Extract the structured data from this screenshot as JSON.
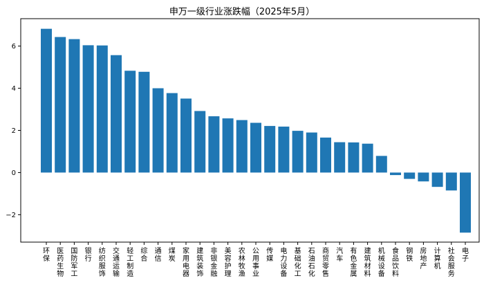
{
  "chart_data": {
    "type": "bar",
    "title": "申万一级行业涨跌幅（2025年5月）",
    "xlabel": "",
    "ylabel": "",
    "ylim": [
      -3.3,
      7.3
    ],
    "yticks": [
      -2,
      0,
      2,
      4,
      6
    ],
    "grid": false,
    "bar_color": "#1f77b4",
    "categories": [
      "环保",
      "医药生物",
      "国防军工",
      "银行",
      "纺织服饰",
      "交通运输",
      "轻工制造",
      "综合",
      "通信",
      "煤炭",
      "家用电器",
      "建筑装饰",
      "非银金融",
      "美容护理",
      "农林牧渔",
      "公用事业",
      "传媒",
      "电力设备",
      "基础化工",
      "石油石化",
      "商贸零售",
      "汽车",
      "有色金属",
      "建筑材料",
      "机械设备",
      "食品饮料",
      "钢铁",
      "房地产",
      "计算机",
      "社会服务",
      "电子"
    ],
    "values": [
      6.82,
      6.43,
      6.33,
      6.04,
      6.03,
      5.57,
      4.83,
      4.78,
      4.0,
      3.77,
      3.51,
      2.92,
      2.67,
      2.57,
      2.49,
      2.36,
      2.21,
      2.18,
      1.98,
      1.9,
      1.66,
      1.44,
      1.43,
      1.37,
      0.79,
      -0.12,
      -0.3,
      -0.42,
      -0.68,
      -0.85,
      -2.85
    ]
  }
}
